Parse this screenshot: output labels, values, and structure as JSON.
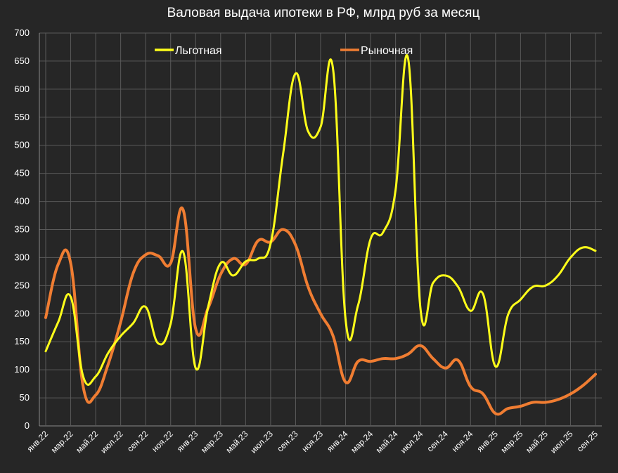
{
  "chart_data": {
    "type": "line",
    "title": "Валовая выдача ипотеки в РФ, млрд руб за месяц",
    "xlabel": "",
    "ylabel": "",
    "ylim": [
      0,
      700
    ],
    "yticks": [
      0,
      50,
      100,
      150,
      200,
      250,
      300,
      350,
      400,
      450,
      500,
      550,
      600,
      650,
      700
    ],
    "grid": true,
    "legend_position": "top",
    "x": [
      "янв.22",
      "фев.22",
      "мар.22",
      "апр.22",
      "май.22",
      "июн.22",
      "июл.22",
      "авг.22",
      "сен.22",
      "окт.22",
      "ноя.22",
      "дек.22",
      "янв.23",
      "фев.23",
      "мар.23",
      "апр.23",
      "май.23",
      "июн.23",
      "июл.23",
      "авг.23",
      "сен.23",
      "окт.23",
      "ноя.23",
      "дек.23",
      "янв.24",
      "фев.24",
      "мар.24",
      "апр.24",
      "май.24",
      "июн.24",
      "июл.24",
      "авг.24",
      "сен.24",
      "окт.24",
      "ноя.24",
      "дек.24",
      "янв.25",
      "фев.25",
      "мар.25",
      "апр.25",
      "май.25",
      "июн.25",
      "июл.25",
      "авг.25",
      "сен.25"
    ],
    "x_tick_labels": [
      "янв.22",
      "мар.22",
      "май.22",
      "июл.22",
      "сен.22",
      "ноя.22",
      "янв.23",
      "мар.23",
      "май.23",
      "июл.23",
      "сен.23",
      "ноя.23",
      "янв.24",
      "мар.24",
      "май.24",
      "июл.24",
      "сен.24",
      "ноя.24",
      "янв.25",
      "мар.25",
      "май.25",
      "июл.25",
      "сен.25"
    ],
    "series": [
      {
        "name": "Льготная",
        "color": "#ffff1a",
        "values": [
          133,
          185,
          230,
          88,
          88,
          130,
          160,
          183,
          212,
          147,
          182,
          310,
          103,
          212,
          290,
          268,
          293,
          298,
          325,
          485,
          628,
          525,
          533,
          635,
          190,
          215,
          333,
          345,
          420,
          655,
          207,
          255,
          268,
          248,
          205,
          235,
          106,
          198,
          225,
          248,
          250,
          268,
          300,
          318,
          312
        ]
      },
      {
        "name": "Рыночная",
        "color": "#f07d32",
        "values": [
          193,
          288,
          290,
          70,
          55,
          110,
          185,
          272,
          305,
          303,
          290,
          385,
          173,
          210,
          270,
          298,
          288,
          330,
          328,
          350,
          322,
          248,
          200,
          160,
          78,
          115,
          115,
          120,
          120,
          128,
          143,
          120,
          103,
          117,
          70,
          57,
          22,
          31,
          35,
          42,
          42,
          47,
          57,
          72,
          92
        ]
      }
    ]
  }
}
